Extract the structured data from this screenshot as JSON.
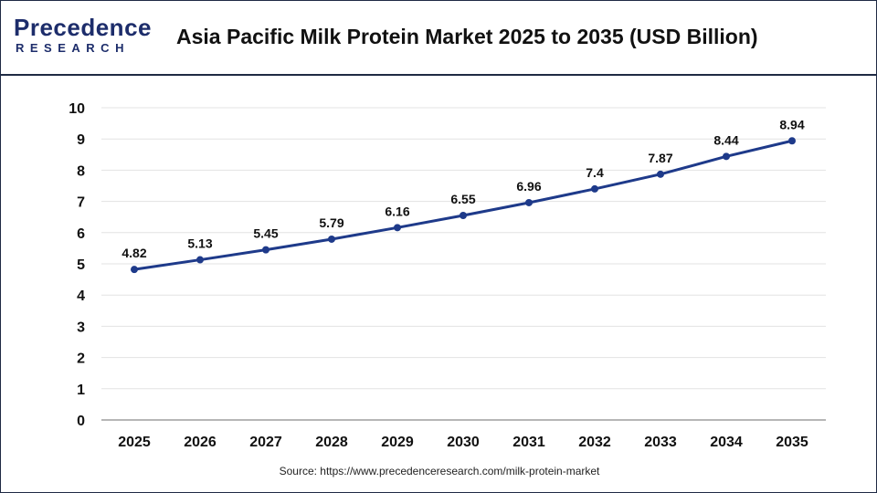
{
  "logo": {
    "word": "Precedence",
    "sub": "RESEARCH"
  },
  "title": "Asia Pacific Milk Protein Market 2025 to 2035  (USD Billion)",
  "source": "Source: https://www.precedenceresearch.com/milk-protein-market",
  "colors": {
    "line": "#1e3a8a",
    "marker": "#1e3a8a",
    "brand": "#1d2d6b",
    "grid": "#e3e3e3"
  },
  "chart_data": {
    "type": "line",
    "title": "Asia Pacific Milk Protein Market 2025 to 2035  (USD Billion)",
    "xlabel": "",
    "ylabel": "",
    "categories": [
      "2025",
      "2026",
      "2027",
      "2028",
      "2029",
      "2030",
      "2031",
      "2032",
      "2033",
      "2034",
      "2035"
    ],
    "values": [
      4.82,
      5.13,
      5.45,
      5.79,
      6.16,
      6.55,
      6.96,
      7.4,
      7.87,
      8.44,
      8.94
    ],
    "value_labels": [
      "4.82",
      "5.13",
      "5.45",
      "5.79",
      "6.16",
      "6.55",
      "6.96",
      "7.4",
      "7.87",
      "8.44",
      "8.94"
    ],
    "y_ticks": [
      0,
      1,
      2,
      3,
      4,
      5,
      6,
      7,
      8,
      9,
      10
    ],
    "ylim": [
      0,
      10
    ],
    "grid": true,
    "legend": "none"
  }
}
